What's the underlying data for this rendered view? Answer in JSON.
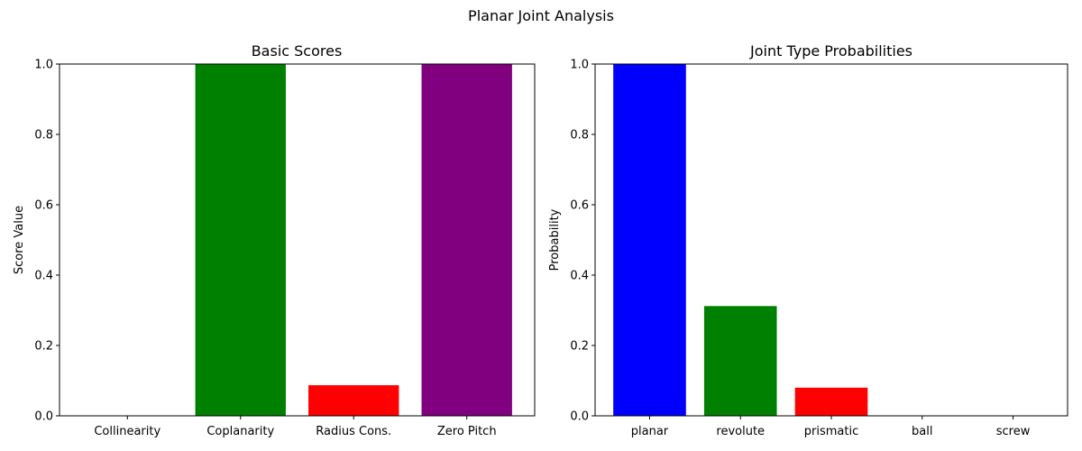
{
  "figure": {
    "suptitle": "Planar Joint Analysis"
  },
  "chart_data": [
    {
      "type": "bar",
      "title": "Basic Scores",
      "xlabel": "",
      "ylabel": "Score Value",
      "ylim": [
        0,
        1
      ],
      "yticks": [
        "0.0",
        "0.2",
        "0.4",
        "0.6",
        "0.8",
        "1.0"
      ],
      "categories": [
        "Collinearity",
        "Coplanarity",
        "Radius Cons.",
        "Zero Pitch"
      ],
      "values": [
        0.0,
        1.0,
        0.087,
        1.0
      ],
      "colors": [
        "#0000ff",
        "#008000",
        "#ff0000",
        "#800080"
      ],
      "grid": false
    },
    {
      "type": "bar",
      "title": "Joint Type Probabilities",
      "xlabel": "",
      "ylabel": "Probability",
      "ylim": [
        0,
        1
      ],
      "yticks": [
        "0.0",
        "0.2",
        "0.4",
        "0.6",
        "0.8",
        "1.0"
      ],
      "categories": [
        "planar",
        "revolute",
        "prismatic",
        "ball",
        "screw"
      ],
      "values": [
        1.0,
        0.312,
        0.08,
        0.0,
        0.0
      ],
      "colors": [
        "#0000ff",
        "#008000",
        "#ff0000",
        "#800080",
        "#ffa500"
      ],
      "grid": false
    }
  ]
}
